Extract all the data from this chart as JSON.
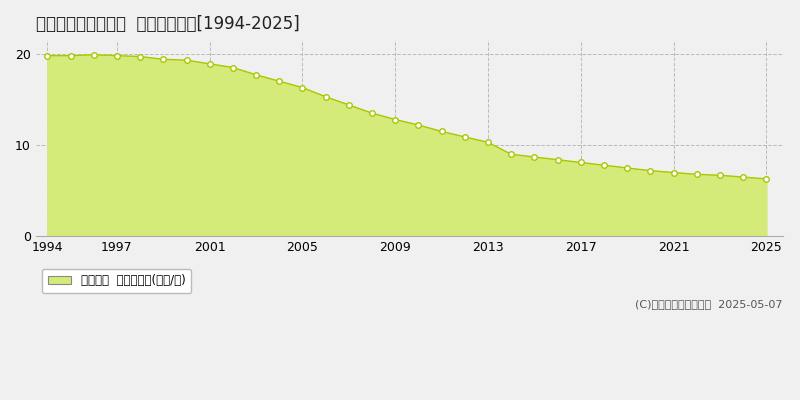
{
  "title": "東牟婁郡太地町太地  公示地価推移[1994-2025]",
  "years": [
    1994,
    1995,
    1996,
    1997,
    1998,
    1999,
    2000,
    2001,
    2002,
    2003,
    2004,
    2005,
    2006,
    2007,
    2008,
    2009,
    2010,
    2011,
    2012,
    2013,
    2014,
    2015,
    2016,
    2017,
    2018,
    2019,
    2020,
    2021,
    2022,
    2023,
    2024,
    2025
  ],
  "values": [
    19.8,
    19.8,
    19.9,
    19.8,
    19.7,
    19.4,
    19.3,
    18.9,
    18.5,
    17.7,
    17.0,
    16.3,
    15.3,
    14.4,
    13.5,
    12.8,
    12.2,
    11.5,
    10.9,
    10.3,
    9.0,
    8.7,
    8.4,
    8.1,
    7.8,
    7.5,
    7.2,
    7.0,
    6.8,
    6.7,
    6.5,
    6.3
  ],
  "fill_color": "#d4eb7a",
  "line_color": "#a8c800",
  "marker_facecolor": "white",
  "marker_edgecolor": "#a8c800",
  "background_color": "#f0f0f0",
  "plot_bg_color": "#f0f0f0",
  "grid_color": "#bbbbbb",
  "yticks": [
    0,
    10,
    20
  ],
  "xticks": [
    1994,
    1997,
    2001,
    2005,
    2009,
    2013,
    2017,
    2021,
    2025
  ],
  "ylim": [
    0,
    21.5
  ],
  "xlim": [
    1993.5,
    2025.7
  ],
  "legend_label": "公示地価  平均坪単価(万円/坪)",
  "copyright_text": "(C)土地価格ドットコム  2025-05-07",
  "title_fontsize": 12,
  "axis_fontsize": 9,
  "legend_fontsize": 8.5,
  "copyright_fontsize": 8
}
